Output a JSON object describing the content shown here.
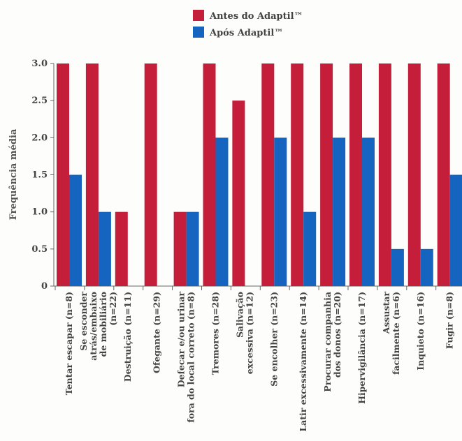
{
  "chart_data": {
    "type": "bar",
    "xlabel": "",
    "ylabel": "Frequência média",
    "ylim": [
      0,
      3
    ],
    "yticks": [
      "0",
      "0.5",
      "1.0",
      "1.5",
      "2.0",
      "2.5",
      "3.0"
    ],
    "grid": false,
    "legend_position": "top-center",
    "categories": [
      [
        "Tentar escapar  (n=8)"
      ],
      [
        "Se esconder",
        "atrás/embaixo",
        "de mobiliário",
        "(n=22)"
      ],
      [
        "Destruição  (n=11)"
      ],
      [
        "Ofegante  (n=29)"
      ],
      [
        "Defecar e/ou urinar",
        "fora do local correto  (n=8)"
      ],
      [
        "Tremores  (n=28)"
      ],
      [
        "Salivação",
        "excessiva  (n=12)"
      ],
      [
        "Se encolher  (n=23)"
      ],
      [
        "Latir excessivamente  (n=14)"
      ],
      [
        "Procurar companhia",
        "dos donos  (n=20)"
      ],
      [
        "Hipervigilância  (n=17)"
      ],
      [
        "Assustar",
        "facilmente  (n=6)"
      ],
      [
        "Inquieto  (n=16)"
      ],
      [
        "Fugir  (n=8)"
      ]
    ],
    "series": [
      {
        "name": "Antes do Adaptil™",
        "color": "#c41e3a",
        "values": [
          3.0,
          3.0,
          1.0,
          3.0,
          1.0,
          3.0,
          2.5,
          3.0,
          3.0,
          3.0,
          3.0,
          3.0,
          3.0,
          3.0
        ]
      },
      {
        "name": "Após Adaptil™",
        "color": "#1565c0",
        "values": [
          1.5,
          1.0,
          0,
          0,
          1.0,
          2.0,
          0,
          2.0,
          1.0,
          2.0,
          2.0,
          0.5,
          0.5,
          1.5
        ]
      }
    ]
  }
}
